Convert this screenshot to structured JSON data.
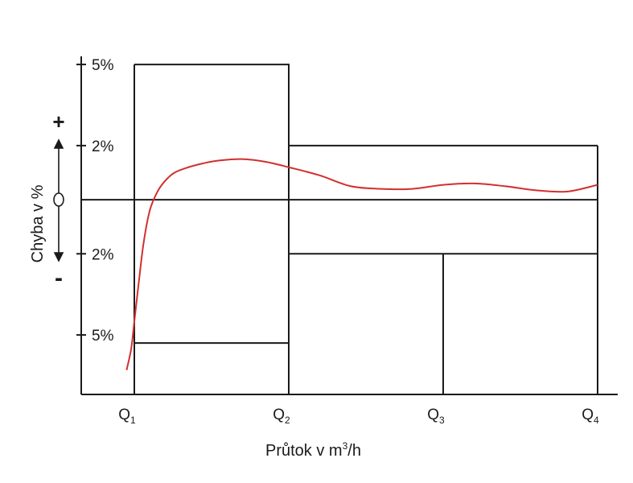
{
  "chart_data": {
    "type": "line",
    "xlabel_main": "Průtok v  m",
    "xlabel_sup": "3",
    "xlabel_tail": "/h",
    "ylabel": "Chyba v  %",
    "y_sign_plus": "+",
    "y_sign_minus": "-",
    "y_ticks": [
      {
        "value": 5,
        "label": "5%"
      },
      {
        "value": 2,
        "label": "2%"
      },
      {
        "value": -2,
        "label": "2%"
      },
      {
        "value": -5,
        "label": "5%"
      }
    ],
    "x_ticks": [
      {
        "base": "Q",
        "sub": "1",
        "pos": 1
      },
      {
        "base": "Q",
        "sub": "2",
        "pos": 2
      },
      {
        "base": "Q",
        "sub": "3",
        "pos": 3
      },
      {
        "base": "Q",
        "sub": "4",
        "pos": 4
      }
    ],
    "ylim": [
      -7.2,
      5.3
    ],
    "xlim": [
      0.5,
      4.16
    ],
    "upper_limit": [
      [
        1,
        5
      ],
      [
        2,
        5
      ],
      [
        2,
        2
      ],
      [
        4,
        2
      ]
    ],
    "lower_limit": [
      [
        1,
        -5.3
      ],
      [
        2,
        -5.3
      ],
      [
        2,
        -2
      ],
      [
        4,
        -2
      ]
    ],
    "error_curve": {
      "color": "#d32f2f",
      "x": [
        0.95,
        0.98,
        1.0,
        1.03,
        1.06,
        1.1,
        1.15,
        1.2,
        1.26,
        1.35,
        1.45,
        1.55,
        1.7,
        1.85,
        2.0,
        2.2,
        2.4,
        2.6,
        2.8,
        3.0,
        3.2,
        3.4,
        3.6,
        3.8,
        4.0
      ],
      "y": [
        -6.3,
        -5.5,
        -4.5,
        -3.0,
        -1.6,
        -0.4,
        0.3,
        0.7,
        1.0,
        1.2,
        1.35,
        1.45,
        1.5,
        1.4,
        1.2,
        0.9,
        0.5,
        0.4,
        0.4,
        0.55,
        0.6,
        0.5,
        0.35,
        0.3,
        0.55
      ]
    }
  }
}
